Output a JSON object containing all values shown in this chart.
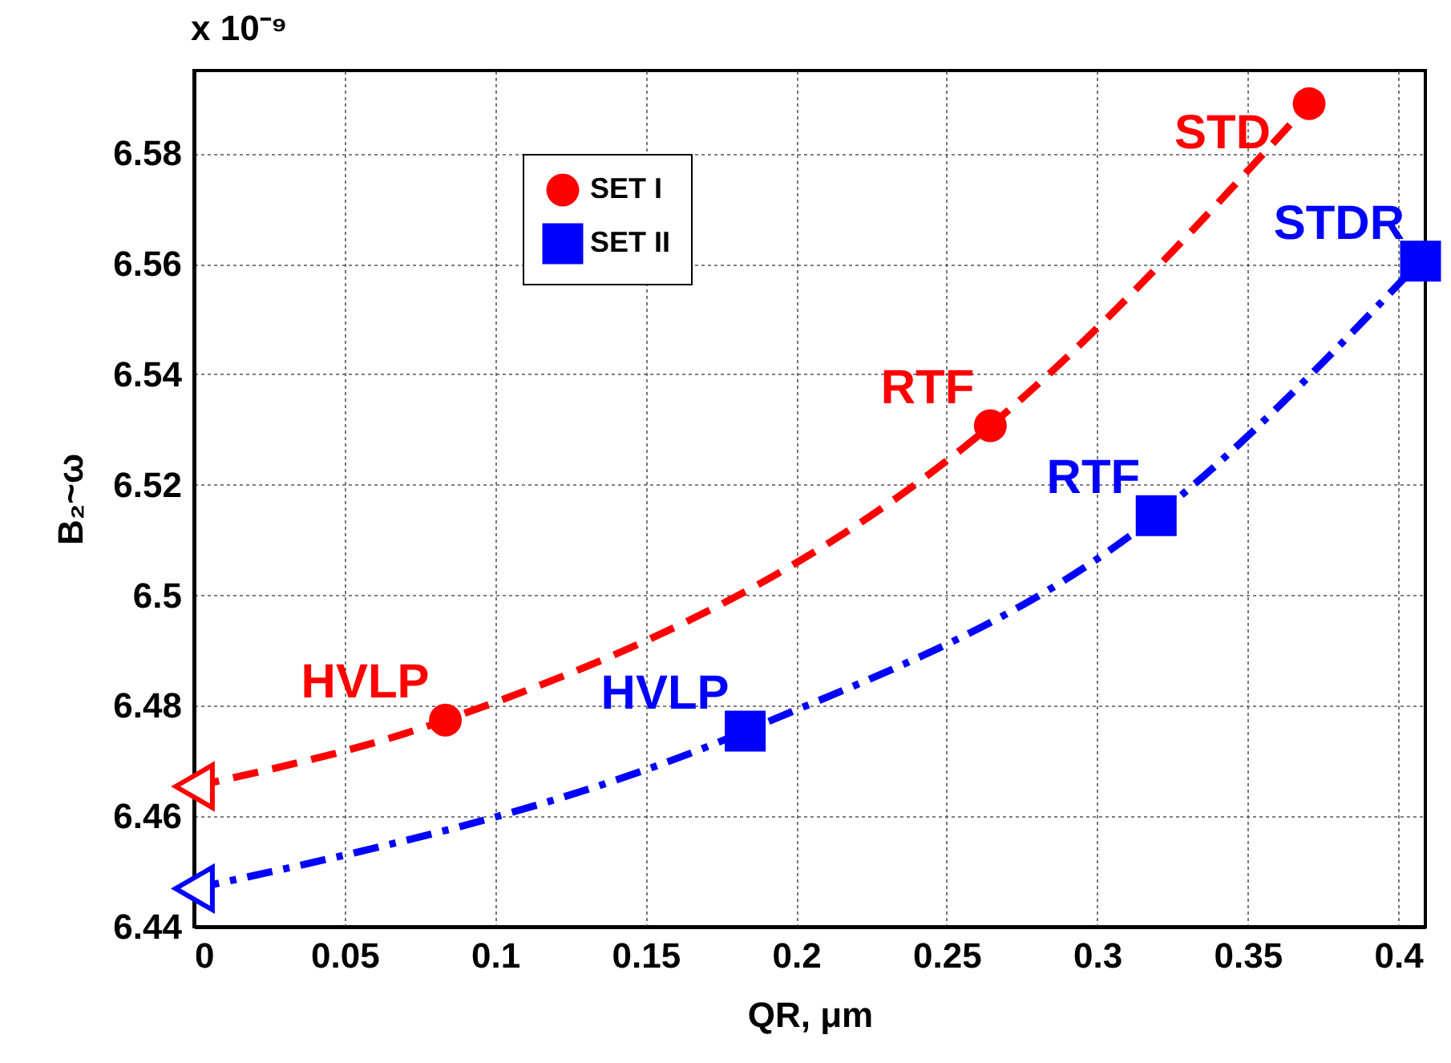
{
  "chart_data": {
    "type": "line",
    "xlabel": "QR, μm",
    "ylabel": "B₂~ω",
    "annotations": [
      "x 10⁻⁹",
      {
        "text": "HVLP",
        "x": 0.0835,
        "y": 6.4774
      },
      {
        "text": "RTF",
        "x": 0.2645,
        "y": 6.5307
      },
      {
        "text": "STD",
        "x": 0.3704,
        "y": 6.589
      },
      {
        "text": "HVLP",
        "x": 0.1831,
        "y": 6.4754
      },
      {
        "text": "RTF",
        "x": 0.3196,
        "y": 6.5144
      },
      {
        "text": "STDR",
        "x": 0.4074,
        "y": 6.5605
      }
    ],
    "xlim": [
      0,
      0.409
    ],
    "ylim": [
      6.44,
      6.595
    ],
    "xticks": [
      0,
      0.05,
      0.1,
      0.15,
      0.2,
      0.25,
      0.3,
      0.35,
      0.4
    ],
    "yticks": [
      6.44,
      6.46,
      6.48,
      6.5,
      6.52,
      6.54,
      6.56,
      6.58
    ],
    "grid": true,
    "legend": "top left",
    "series": [
      {
        "color": "#ff0000",
        "line_style": "dashed",
        "x": [
          0,
          0.0835,
          0.2645,
          0.3704
        ],
        "values": [
          6.4654,
          6.4774,
          6.5307,
          6.589
        ]
      },
      {
        "color": "#0000ff",
        "line_style": "dashdot",
        "x": [
          0,
          0.1831,
          0.3196,
          0.4074
        ],
        "values": [
          6.4469,
          6.4754,
          6.5144,
          6.5605
        ]
      },
      {
        "type": "scatter",
        "name": "SET I",
        "color": "#ff0000",
        "marker": "circle",
        "x": [
          0.0835,
          0.2645,
          0.3704
        ],
        "values": [
          6.4774,
          6.5307,
          6.589
        ]
      },
      {
        "type": "scatter",
        "name": "SET II",
        "color": "#0000ff",
        "marker": "square",
        "x": [
          0.1831,
          0.3196,
          0.4074
        ],
        "values": [
          6.4754,
          6.5144,
          6.5605
        ]
      },
      {
        "type": "scatter",
        "color": "#ff0000",
        "marker": "triangle",
        "x": [
          0
        ],
        "values": [
          6.4654
        ]
      },
      {
        "type": "scatter",
        "color": "#0000ff",
        "marker": "triangle",
        "x": [
          0
        ],
        "values": [
          6.4469
        ]
      }
    ]
  }
}
